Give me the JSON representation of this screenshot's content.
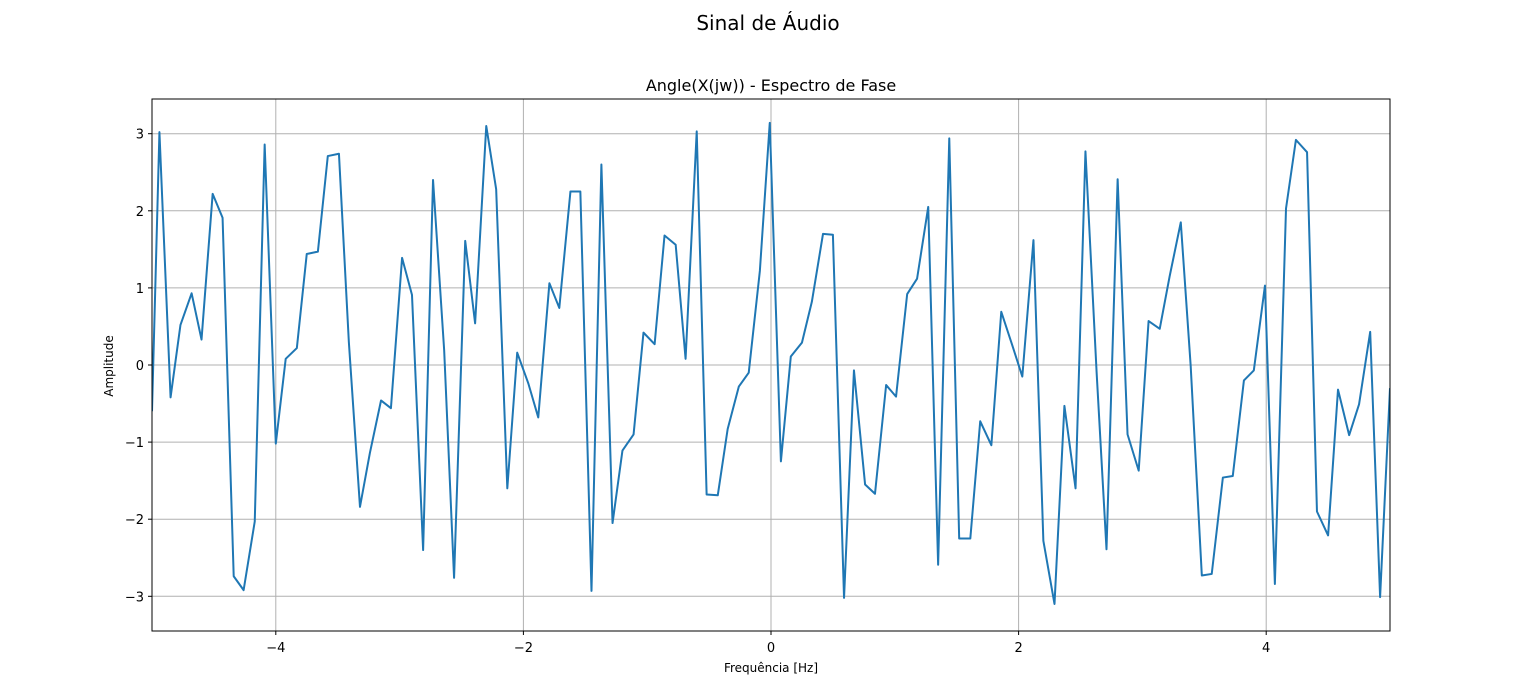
{
  "figure": {
    "suptitle": "Sinal de Áudio"
  },
  "chart_data": {
    "type": "line",
    "title": "Angle(X(jw)) - Espectro de Fase",
    "xlabel": "Frequência [Hz]",
    "ylabel": "Amplitude",
    "xlim": [
      -5.0,
      5.0
    ],
    "ylim": [
      -3.45,
      3.45
    ],
    "xticks": [
      -4,
      -2,
      0,
      2,
      4
    ],
    "xtick_labels": [
      "−4",
      "−2",
      "0",
      "2",
      "4"
    ],
    "yticks": [
      -3,
      -2,
      -1,
      0,
      1,
      2,
      3
    ],
    "ytick_labels": [
      "−3",
      "−2",
      "−1",
      "0",
      "1",
      "2",
      "3"
    ],
    "grid": true,
    "series": [
      {
        "color": "#1f77b4",
        "x": [
          -5.0,
          -4.94,
          -4.85,
          -4.77,
          -4.68,
          -4.6,
          -4.51,
          -4.43,
          -4.34,
          -4.26,
          -4.17,
          -4.09,
          -4.0,
          -3.92,
          -3.83,
          -3.75,
          -3.66,
          -3.58,
          -3.49,
          -3.41,
          -3.32,
          -3.24,
          -3.15,
          -3.07,
          -2.98,
          -2.9,
          -2.81,
          -2.73,
          -2.64,
          -2.56,
          -2.47,
          -2.39,
          -2.3,
          -2.22,
          -2.13,
          -2.05,
          -1.96,
          -1.88,
          -1.79,
          -1.71,
          -1.62,
          -1.54,
          -1.45,
          -1.37,
          -1.28,
          -1.2,
          -1.11,
          -1.03,
          -0.94,
          -0.86,
          -0.77,
          -0.69,
          -0.6,
          -0.52,
          -0.43,
          -0.35,
          -0.26,
          -0.18,
          -0.09,
          -0.01,
          0.08,
          0.16,
          0.25,
          0.33,
          0.42,
          0.5,
          0.59,
          0.67,
          0.76,
          0.84,
          0.93,
          1.01,
          1.1,
          1.18,
          1.27,
          1.35,
          1.44,
          1.52,
          1.61,
          1.69,
          1.78,
          1.86,
          1.95,
          2.03,
          2.12,
          2.2,
          2.29,
          2.37,
          2.46,
          2.54,
          2.63,
          2.71,
          2.8,
          2.88,
          2.97,
          3.05,
          3.14,
          3.22,
          3.31,
          3.39,
          3.48,
          3.56,
          3.65,
          3.73,
          3.82,
          3.9,
          3.99,
          4.07,
          4.16,
          4.24,
          4.33,
          4.41,
          4.5,
          4.58,
          4.67,
          4.75,
          4.84,
          4.92,
          5.0
        ],
        "y": [
          -0.6,
          3.02,
          -0.42,
          0.52,
          0.93,
          0.33,
          2.22,
          1.91,
          -2.74,
          -2.92,
          -2.03,
          2.86,
          -1.02,
          0.08,
          0.22,
          1.44,
          1.47,
          2.71,
          2.74,
          0.3,
          -1.84,
          -1.14,
          -0.46,
          -0.56,
          1.39,
          0.91,
          -2.4,
          2.4,
          0.19,
          -2.76,
          1.61,
          0.54,
          3.1,
          2.28,
          -1.6,
          0.16,
          -0.24,
          -0.68,
          1.06,
          0.74,
          2.25,
          2.25,
          -2.93,
          2.6,
          -2.05,
          -1.11,
          -0.9,
          0.42,
          0.27,
          1.68,
          1.56,
          0.08,
          3.03,
          -1.68,
          -1.69,
          -0.83,
          -0.28,
          -0.1,
          1.22,
          3.14,
          -1.25,
          0.11,
          0.29,
          0.82,
          1.7,
          1.69,
          -3.02,
          -0.07,
          -1.55,
          -1.67,
          -0.26,
          -0.41,
          0.92,
          1.12,
          2.05,
          -2.59,
          2.94,
          -2.25,
          -2.25,
          -0.73,
          -1.04,
          0.69,
          0.25,
          -0.15,
          1.62,
          -2.28,
          -3.1,
          -0.53,
          -1.6,
          2.77,
          -0.09,
          -2.39,
          2.41,
          -0.9,
          -1.37,
          0.57,
          0.47,
          1.15,
          1.85,
          -0.01,
          -2.73,
          -2.71,
          -1.46,
          -1.44,
          -0.2,
          -0.07,
          1.03,
          -2.84,
          2.03,
          2.92,
          2.76,
          -1.9,
          -2.21,
          -0.32,
          -0.91,
          -0.51,
          0.43,
          -3.01,
          -0.3
        ]
      }
    ]
  }
}
